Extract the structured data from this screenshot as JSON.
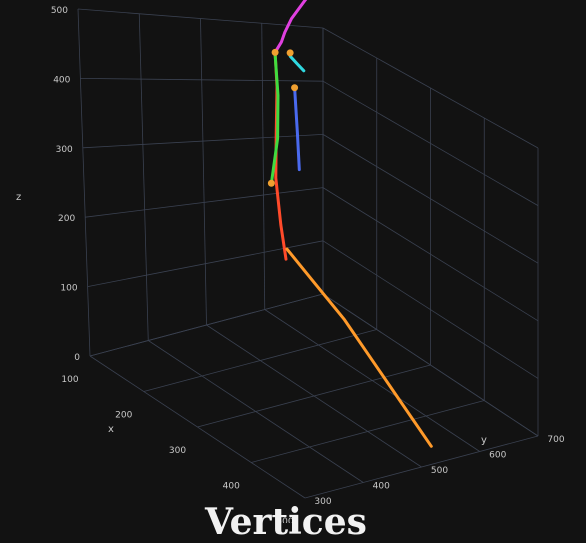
{
  "chart_data": {
    "type": "scatter3d",
    "background": "#121212",
    "grid": true,
    "axes": {
      "x": {
        "label": "x",
        "ticks": [
          "100",
          "200",
          "300",
          "400",
          "500"
        ]
      },
      "y": {
        "label": "y",
        "ticks": [
          "300",
          "400",
          "500",
          "600",
          "700"
        ]
      },
      "z": {
        "label": "z",
        "ticks": [
          "0",
          "100",
          "200",
          "300",
          "400",
          "500"
        ],
        "range": [
          0,
          500
        ]
      }
    },
    "series": [
      {
        "color": "#e040e0",
        "points": [
          [
            135,
            322,
            470
          ],
          [
            150,
            360,
            460
          ],
          [
            170,
            400,
            455
          ],
          [
            190,
            430,
            452
          ],
          [
            205,
            450,
            450
          ],
          [
            215,
            470,
            445
          ]
        ]
      },
      {
        "color": "#ff4a2a",
        "points": [
          [
            215,
            470,
            445
          ],
          [
            250,
            500,
            420
          ],
          [
            290,
            540,
            380
          ],
          [
            320,
            570,
            340
          ],
          [
            360,
            600,
            300
          ],
          [
            390,
            620,
            270
          ]
        ]
      },
      {
        "color": "#ff9a2a",
        "points": [
          [
            370,
            600,
            270
          ],
          [
            400,
            580,
            230
          ],
          [
            430,
            560,
            190
          ],
          [
            460,
            540,
            140
          ],
          [
            490,
            520,
            90
          ],
          [
            520,
            500,
            40
          ]
        ]
      },
      {
        "color": "#3fdc3f",
        "points": [
          [
            215,
            470,
            440
          ],
          [
            240,
            490,
            400
          ],
          [
            270,
            520,
            360
          ],
          [
            300,
            560,
            320
          ]
        ]
      },
      {
        "color": "#30d8e0",
        "points": [
          [
            210,
            440,
            430
          ],
          [
            200,
            420,
            410
          ],
          [
            190,
            400,
            390
          ]
        ]
      },
      {
        "color": "#4a6aee",
        "points": [
          [
            205,
            430,
            380
          ],
          [
            195,
            420,
            340
          ],
          [
            185,
            410,
            300
          ],
          [
            175,
            400,
            240
          ]
        ]
      }
    ],
    "vertices": [
      {
        "color": "#f0a030",
        "point": [
          215,
          470,
          445
        ]
      },
      {
        "color": "#f0a030",
        "point": [
          210,
          440,
          435
        ]
      },
      {
        "color": "#f0a030",
        "point": [
          205,
          430,
          380
        ]
      },
      {
        "color": "#f0a030",
        "point": [
          300,
          560,
          320
        ]
      }
    ]
  },
  "caption": "Vertices"
}
